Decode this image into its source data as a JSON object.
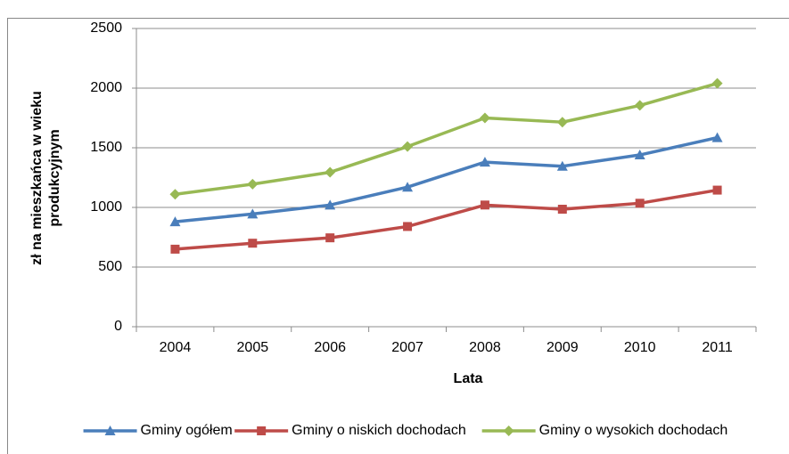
{
  "chart_data": {
    "type": "line",
    "ylabel": [
      "zł na mieszkańca w wieku",
      "produkcyjnym"
    ],
    "xlabel": "Lata",
    "categories": [
      "2004",
      "2005",
      "2006",
      "2007",
      "2008",
      "2009",
      "2010",
      "2011"
    ],
    "series": [
      {
        "name": "Gminy ogółem",
        "color": "#4a7ebb",
        "marker": "triangle",
        "values": [
          880,
          945,
          1020,
          1170,
          1380,
          1345,
          1440,
          1585
        ]
      },
      {
        "name": "Gminy o niskich dochodach",
        "color": "#be4b48",
        "marker": "square",
        "values": [
          650,
          700,
          745,
          840,
          1020,
          985,
          1035,
          1145
        ]
      },
      {
        "name": "Gminy o wysokich dochodach",
        "color": "#98b954",
        "marker": "diamond",
        "values": [
          1110,
          1195,
          1295,
          1510,
          1750,
          1715,
          1855,
          2040
        ]
      }
    ],
    "ylim": [
      0,
      2500
    ],
    "yticks": [
      0,
      500,
      1000,
      1500,
      2000,
      2500
    ],
    "grid": true,
    "legend": "bottom"
  }
}
